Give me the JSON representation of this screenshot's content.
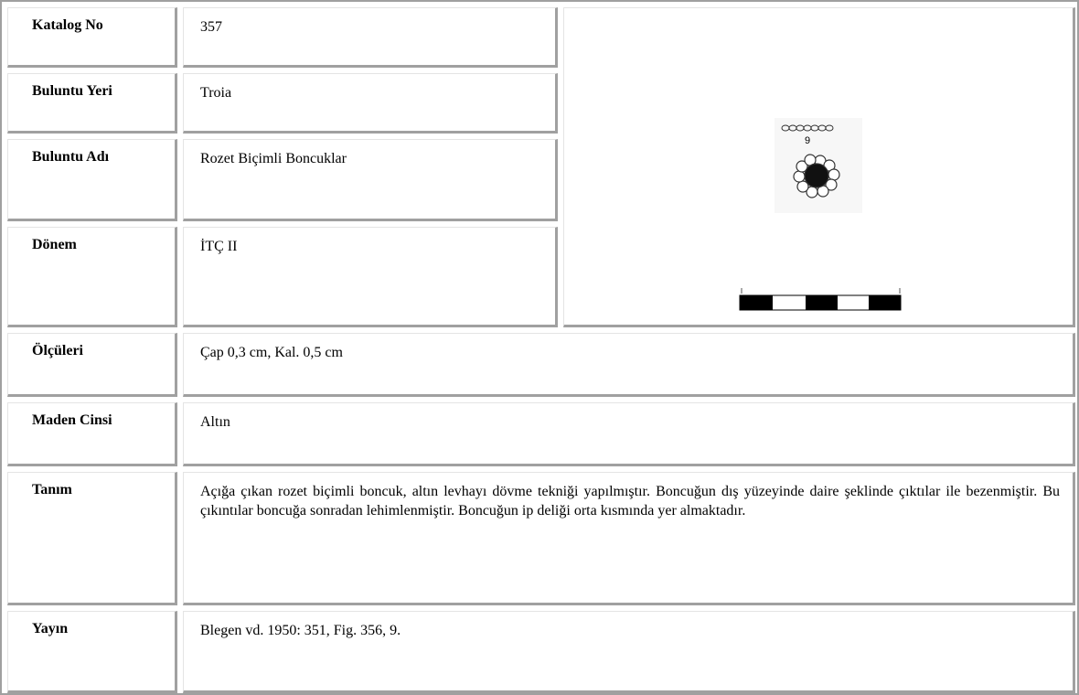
{
  "rows": [
    {
      "label": "Katalog No",
      "value": "357"
    },
    {
      "label": "Buluntu Yeri",
      "value": "Troia"
    },
    {
      "label": "Buluntu Adı",
      "value": "Rozet Biçimli Boncuklar"
    },
    {
      "label": "Dönem",
      "value": "İTÇ II"
    },
    {
      "label": "Ölçüleri",
      "value": "Çap 0,3 cm, Kal. 0,5 cm"
    },
    {
      "label": "Maden Cinsi",
      "value": "Altın"
    },
    {
      "label": "Tanım",
      "value": "Açığa çıkan rozet biçimli boncuk, altın levhayı dövme tekniği yapılmıştır. Boncuğun dış yüzeyinde daire şeklinde çıktılar ile bezenmiştir. Bu çıkıntılar boncuğa sonradan lehimlenmiştir. Boncuğun ip deliği orta kısmında yer almaktadır."
    },
    {
      "label": "Yayın",
      "value": "Blegen vd. 1950: 351, Fig. 356, 9."
    }
  ],
  "figure": {
    "label": "9"
  }
}
